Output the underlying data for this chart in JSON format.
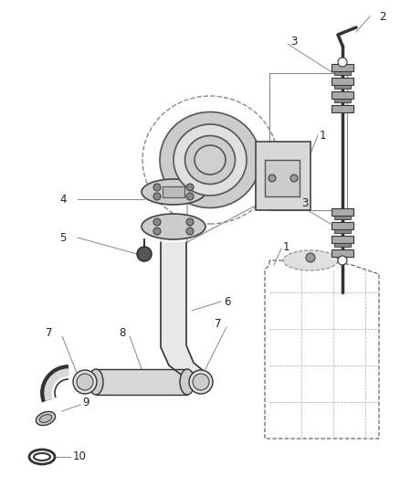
{
  "bg_color": "#ffffff",
  "line_color": "#222222",
  "gray_light": "#cccccc",
  "gray_mid": "#999999",
  "gray_dark": "#555555",
  "font_size": 8.5,
  "fig_w": 4.39,
  "fig_h": 5.33,
  "dpi": 100
}
